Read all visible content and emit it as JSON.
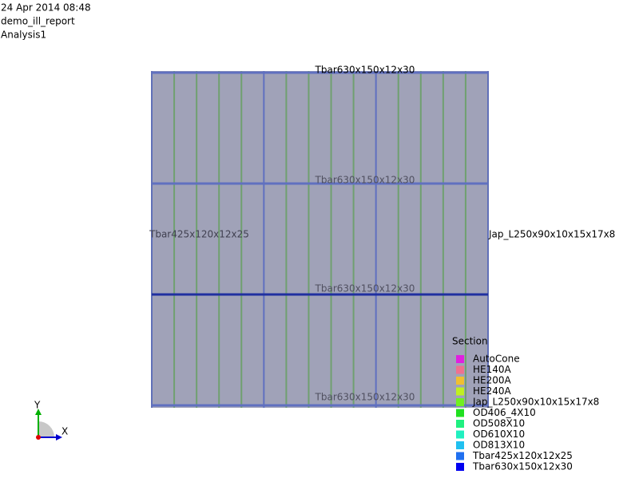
{
  "header": {
    "date": "24 Apr 2014 08:48",
    "report": "demo_ill_report",
    "analysis": "Analysis1"
  },
  "model": {
    "labels": [
      "Tbar630x150x12x30",
      "Tbar630x150x12x30",
      "Tbar630x150x12x30",
      "Tbar630x150x12x30"
    ],
    "middle_left": "Tbar425x120x12x25",
    "middle_right": "Jap_L250x90x10x15x17x8"
  },
  "legend": {
    "title": "Section",
    "items": [
      {
        "label": "AutoCone",
        "color": "#e020e0"
      },
      {
        "label": "HE140A",
        "color": "#f07090"
      },
      {
        "label": "HE200A",
        "color": "#f0c030"
      },
      {
        "label": "HE240A",
        "color": "#c0f020"
      },
      {
        "label": "Jap_L250x90x10x15x17x8",
        "color": "#70f020"
      },
      {
        "label": "OD406_4X10",
        "color": "#20e020"
      },
      {
        "label": "OD508X10",
        "color": "#20f080"
      },
      {
        "label": "OD610X10",
        "color": "#20f0c0"
      },
      {
        "label": "OD813X10",
        "color": "#20c0f0"
      },
      {
        "label": "Tbar425x120x12x25",
        "color": "#2070f0"
      },
      {
        "label": "Tbar630x150x12x30",
        "color": "#0000f0"
      }
    ]
  },
  "axes": {
    "x": "X",
    "y": "Y"
  }
}
